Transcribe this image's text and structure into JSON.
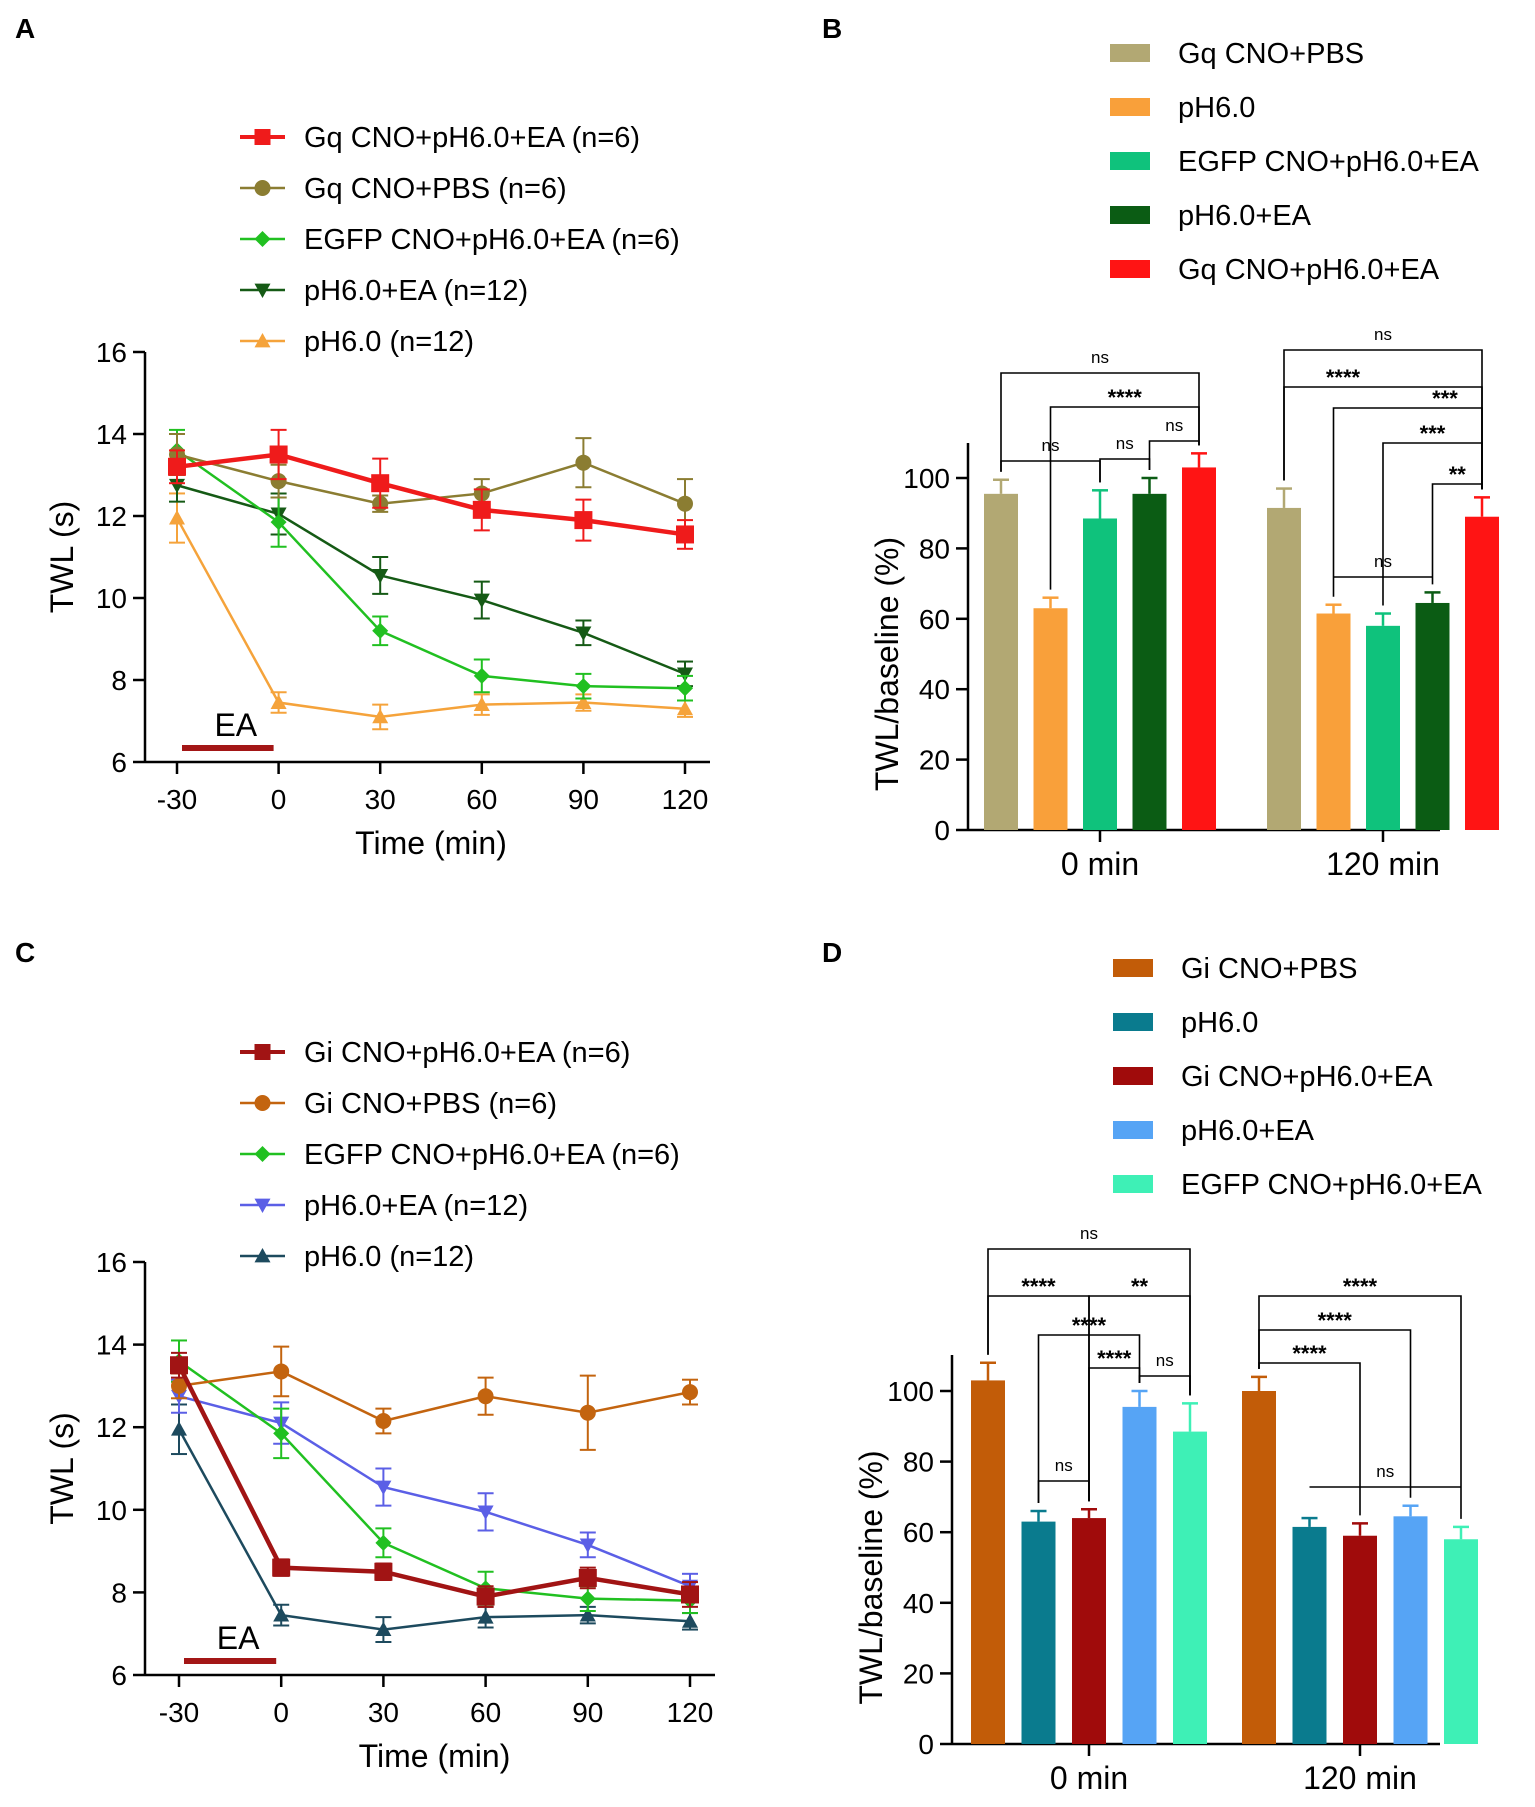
{
  "chart_data": [
    {
      "panel": "A",
      "type": "line",
      "xlabel": "Time (min)",
      "ylabel": "TWL (s)",
      "x": [
        -30,
        0,
        30,
        60,
        90,
        120
      ],
      "xticks": [
        "-30",
        "0",
        "30",
        "60",
        "90",
        "120"
      ],
      "yticks": [
        "6",
        "8",
        "10",
        "12",
        "14",
        "16"
      ],
      "ylim": [
        6,
        16
      ],
      "annotation": "EA",
      "series": [
        {
          "name": "Gq CNO+pH6.0+EA (n=6)",
          "color": "#ef1b1b",
          "marker": "square",
          "values": [
            13.2,
            13.5,
            12.8,
            12.15,
            11.9,
            11.55
          ],
          "err": [
            0.4,
            0.6,
            0.6,
            0.5,
            0.5,
            0.35
          ]
        },
        {
          "name": "Gq CNO+PBS (n=6)",
          "color": "#8b7d32",
          "marker": "circle",
          "values": [
            13.5,
            12.85,
            12.3,
            12.55,
            13.3,
            12.3
          ],
          "err": [
            0.5,
            0.4,
            0.2,
            0.35,
            0.6,
            0.6
          ]
        },
        {
          "name": "EGFP CNO+pH6.0+EA (n=6)",
          "color": "#21c021",
          "marker": "diamond",
          "values": [
            13.6,
            11.85,
            9.2,
            8.1,
            7.85,
            7.8
          ],
          "err": [
            0.5,
            0.6,
            0.35,
            0.4,
            0.3,
            0.3
          ]
        },
        {
          "name": "pH6.0+EA (n=12)",
          "color": "#155a15",
          "marker": "tri-down",
          "values": [
            12.75,
            12.05,
            10.55,
            9.95,
            9.15,
            8.15
          ],
          "err": [
            0.4,
            0.5,
            0.45,
            0.45,
            0.3,
            0.3
          ]
        },
        {
          "name": "pH6.0 (n=12)",
          "color": "#f5a33b",
          "marker": "tri-up",
          "values": [
            11.95,
            7.45,
            7.1,
            7.4,
            7.45,
            7.3
          ],
          "err": [
            0.6,
            0.25,
            0.3,
            0.25,
            0.2,
            0.2
          ]
        }
      ]
    },
    {
      "panel": "B",
      "type": "bar",
      "ylabel": "TWL/baseline (%)",
      "categories": [
        "0 min",
        "120 min"
      ],
      "yticks": [
        "0",
        "20",
        "40",
        "60",
        "80",
        "100"
      ],
      "ylim": [
        0,
        110
      ],
      "series": [
        {
          "name": "Gq CNO+PBS",
          "color": "#b2a873",
          "values": [
            95.5,
            91.5
          ],
          "err": [
            4,
            5.5
          ]
        },
        {
          "name": "pH6.0",
          "color": "#f9a03a",
          "values": [
            63,
            61.5
          ],
          "err": [
            3,
            2.5
          ]
        },
        {
          "name": "EGFP CNO+pH6.0+EA",
          "color": "#0fc27c",
          "values": [
            88.5,
            58
          ],
          "err": [
            8,
            3.5
          ]
        },
        {
          "name": "pH6.0+EA",
          "color": "#0b5c14",
          "values": [
            95.5,
            64.5
          ],
          "err": [
            4.5,
            3
          ]
        },
        {
          "name": "Gq CNO+pH6.0+EA",
          "color": "#ff1414",
          "values": [
            103,
            89
          ],
          "err": [
            4,
            5.5
          ]
        }
      ],
      "significance": [
        "ns",
        "****",
        "ns",
        "ns",
        "ns",
        "ns",
        "****",
        "***",
        "***",
        "**",
        "ns"
      ]
    },
    {
      "panel": "C",
      "type": "line",
      "xlabel": "Time (min)",
      "ylabel": "TWL (s)",
      "x": [
        -30,
        0,
        30,
        60,
        90,
        120
      ],
      "xticks": [
        "-30",
        "0",
        "30",
        "60",
        "90",
        "120"
      ],
      "yticks": [
        "6",
        "8",
        "10",
        "12",
        "14",
        "16"
      ],
      "ylim": [
        6,
        16
      ],
      "annotation": "EA",
      "series": [
        {
          "name": "Gi CNO+pH6.0+EA (n=6)",
          "color": "#a11414",
          "marker": "square",
          "values": [
            13.5,
            8.6,
            8.5,
            7.9,
            8.35,
            7.95
          ],
          "err": [
            0.3,
            0.2,
            0.2,
            0.25,
            0.25,
            0.3
          ]
        },
        {
          "name": "Gi CNO+PBS (n=6)",
          "color": "#c3640f",
          "marker": "circle",
          "values": [
            13.0,
            13.35,
            12.15,
            12.75,
            12.35,
            12.85
          ],
          "err": [
            0.3,
            0.6,
            0.3,
            0.45,
            0.9,
            0.3
          ]
        },
        {
          "name": "EGFP CNO+pH6.0+EA (n=6)",
          "color": "#21c021",
          "marker": "diamond",
          "values": [
            13.6,
            11.85,
            9.2,
            8.1,
            7.85,
            7.8
          ],
          "err": [
            0.5,
            0.6,
            0.35,
            0.4,
            0.3,
            0.3
          ]
        },
        {
          "name": "pH6.0+EA (n=12)",
          "color": "#5b5fe6",
          "marker": "tri-down",
          "values": [
            12.75,
            12.1,
            10.55,
            9.95,
            9.15,
            8.15
          ],
          "err": [
            0.4,
            0.5,
            0.45,
            0.45,
            0.3,
            0.3
          ]
        },
        {
          "name": "pH6.0 (n=12)",
          "color": "#1d4a5e",
          "marker": "tri-up",
          "values": [
            11.95,
            7.45,
            7.1,
            7.4,
            7.45,
            7.3
          ],
          "err": [
            0.6,
            0.25,
            0.3,
            0.25,
            0.2,
            0.2
          ]
        }
      ]
    },
    {
      "panel": "D",
      "type": "bar",
      "ylabel": "TWL/baseline (%)",
      "categories": [
        "0 min",
        "120 min"
      ],
      "yticks": [
        "0",
        "20",
        "40",
        "60",
        "80",
        "100"
      ],
      "ylim": [
        0,
        110
      ],
      "series": [
        {
          "name": "Gi CNO+PBS",
          "color": "#c25c08",
          "values": [
            103,
            100
          ],
          "err": [
            5,
            4
          ]
        },
        {
          "name": "pH6.0",
          "color": "#0a7b8e",
          "values": [
            63,
            61.5
          ],
          "err": [
            3,
            2.5
          ]
        },
        {
          "name": "Gi CNO+pH6.0+EA",
          "color": "#a00b0b",
          "values": [
            64,
            59
          ],
          "err": [
            2.5,
            3.5
          ]
        },
        {
          "name": "pH6.0+EA",
          "color": "#56a4f5",
          "values": [
            95.5,
            64.5
          ],
          "err": [
            4.5,
            3
          ]
        },
        {
          "name": "EGFP CNO+pH6.0+EA",
          "color": "#3ef0b6",
          "values": [
            88.5,
            58
          ],
          "err": [
            8,
            3.5
          ]
        }
      ],
      "significance": [
        "ns",
        "****",
        "**",
        "****",
        "****",
        "ns",
        "ns",
        "****",
        "****",
        "****",
        "ns"
      ]
    }
  ]
}
